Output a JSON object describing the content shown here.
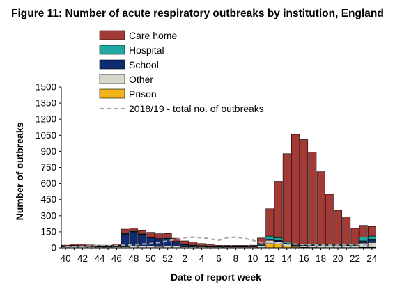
{
  "chart_data": {
    "type": "bar",
    "stacked": true,
    "title": "Figure 11: Number of acute respiratory outbreaks by institution, England",
    "xlabel": "Date of report week",
    "ylabel": "Number of outbreaks",
    "ylim": [
      0,
      1500
    ],
    "yticks": [
      0,
      150,
      300,
      450,
      600,
      750,
      900,
      1050,
      1200,
      1350,
      1500
    ],
    "x": [
      40,
      41,
      42,
      43,
      44,
      45,
      46,
      47,
      48,
      49,
      50,
      51,
      52,
      1,
      2,
      3,
      4,
      5,
      6,
      7,
      8,
      9,
      10,
      11,
      12,
      13,
      14,
      15,
      16,
      17,
      18,
      19,
      20,
      21,
      22,
      23,
      24
    ],
    "xtick_labels": [
      "40",
      "42",
      "44",
      "46",
      "48",
      "50",
      "52",
      "2",
      "4",
      "6",
      "8",
      "10",
      "12",
      "14",
      "16",
      "18",
      "20",
      "22",
      "24"
    ],
    "grid": false,
    "legend_position": "top-left",
    "series": [
      {
        "name": "Prison",
        "color": "#f0b418",
        "values": [
          0,
          0,
          0,
          0,
          0,
          0,
          0,
          0,
          0,
          0,
          0,
          0,
          0,
          0,
          0,
          0,
          0,
          0,
          0,
          0,
          0,
          0,
          0,
          2,
          40,
          35,
          15,
          8,
          5,
          3,
          2,
          2,
          2,
          2,
          2,
          5,
          5
        ]
      },
      {
        "name": "Other",
        "color": "#d9d6cc",
        "values": [
          10,
          12,
          12,
          10,
          8,
          8,
          10,
          10,
          15,
          15,
          15,
          12,
          15,
          15,
          10,
          10,
          10,
          8,
          8,
          8,
          8,
          8,
          8,
          15,
          30,
          25,
          20,
          15,
          15,
          15,
          15,
          15,
          15,
          20,
          15,
          40,
          45
        ]
      },
      {
        "name": "School",
        "color": "#0f2b72",
        "values": [
          5,
          8,
          8,
          5,
          5,
          5,
          10,
          120,
          135,
          110,
          80,
          70,
          70,
          40,
          20,
          10,
          5,
          3,
          2,
          2,
          2,
          2,
          2,
          10,
          10,
          10,
          8,
          5,
          5,
          5,
          5,
          5,
          5,
          5,
          5,
          20,
          25
        ]
      },
      {
        "name": "Hospital",
        "color": "#1fa8a0",
        "values": [
          2,
          3,
          3,
          2,
          2,
          2,
          3,
          5,
          5,
          5,
          5,
          5,
          5,
          5,
          5,
          5,
          5,
          3,
          3,
          3,
          3,
          3,
          5,
          10,
          30,
          25,
          15,
          10,
          10,
          8,
          8,
          8,
          8,
          8,
          10,
          35,
          35
        ]
      },
      {
        "name": "Care home",
        "color": "#a33a36",
        "values": [
          8,
          12,
          14,
          10,
          10,
          10,
          12,
          40,
          30,
          30,
          45,
          45,
          45,
          30,
          30,
          30,
          20,
          15,
          10,
          10,
          10,
          10,
          10,
          55,
          255,
          525,
          820,
          1020,
          975,
          860,
          680,
          470,
          320,
          255,
          150,
          110,
          90
        ]
      }
    ],
    "comparison_line": {
      "name": "2018/19 - total no. of outbreaks",
      "color": "#a8a8a8",
      "values": [
        10,
        12,
        15,
        18,
        20,
        20,
        22,
        25,
        30,
        35,
        40,
        50,
        65,
        80,
        95,
        100,
        95,
        85,
        70,
        95,
        100,
        90,
        70,
        50,
        45,
        40,
        35,
        35,
        30,
        28,
        25,
        25,
        28,
        28,
        30,
        30,
        32
      ]
    }
  }
}
